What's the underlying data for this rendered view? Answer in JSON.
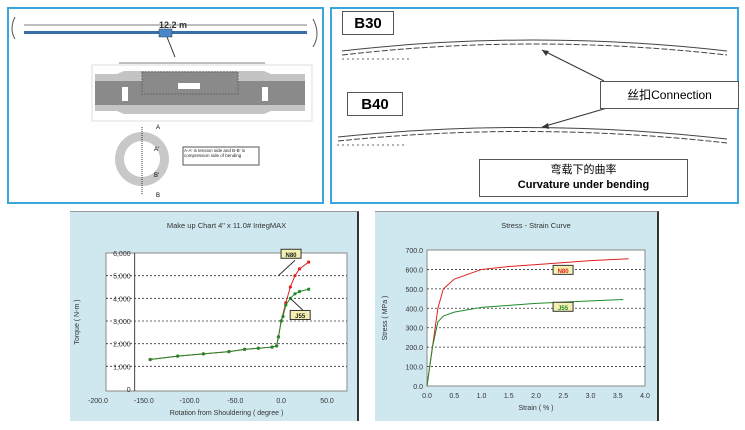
{
  "diagram_pipe": {
    "length_label": "12.2 m",
    "section_labels": [
      "A",
      "A'",
      "B'",
      "B"
    ],
    "note": "A-A' is tension side and B-B' is compression side of bending"
  },
  "diagram_curvature": {
    "b30_label": "B30",
    "b40_label": "B40",
    "connection_label": "丝扣Connection",
    "caption_cn": "弯载下的曲率",
    "caption_en": "Curvature under bending"
  },
  "chart_data": [
    {
      "type": "line",
      "title": "Make up Chart  4\" x 11.0# IntegMAX",
      "xlabel": "Rotation from Shouldering  ( degree )",
      "ylabel": "Torque ( N-m )",
      "xlim": [
        -200,
        50
      ],
      "ylim": [
        0,
        6000
      ],
      "xticks": [
        "-200.0",
        "-150.0",
        "-100.0",
        "-50.0",
        "0.0",
        "50.0"
      ],
      "yticks": [
        "0",
        "1,000",
        "2,000",
        "3,000",
        "4,000",
        "5,000",
        "6,000"
      ],
      "grid": "horizontal dashed",
      "colors": {
        "N80": "#e02020",
        "J55": "#1f8a2a"
      },
      "series": [
        {
          "name": "N80",
          "x": [
            -143,
            -113,
            -85,
            -57,
            -40,
            -25,
            -10,
            -5,
            -3,
            0,
            5,
            10,
            15,
            20,
            30
          ],
          "y": [
            1300,
            1450,
            1550,
            1650,
            1750,
            1800,
            1850,
            1900,
            2300,
            3000,
            3800,
            4500,
            5000,
            5300,
            5600
          ]
        },
        {
          "name": "J55",
          "x": [
            -143,
            -113,
            -85,
            -57,
            -40,
            -25,
            -10,
            -5,
            -3,
            0,
            2,
            5,
            10,
            15,
            20,
            30
          ],
          "y": [
            1300,
            1450,
            1550,
            1650,
            1750,
            1800,
            1850,
            1900,
            2300,
            3000,
            3200,
            3700,
            4000,
            4200,
            4300,
            4400
          ]
        }
      ]
    },
    {
      "type": "line",
      "title": "Stress - Strain Curve",
      "xlabel": "Strain ( % )",
      "ylabel": "Stress ( MPa )",
      "xlim": [
        0,
        4
      ],
      "ylim": [
        0,
        700
      ],
      "xticks": [
        "0.0",
        "0.5",
        "1.0",
        "1.5",
        "2.0",
        "2.5",
        "3.0",
        "3.5",
        "4.0"
      ],
      "yticks": [
        "0.0",
        "100.0",
        "200.0",
        "300.0",
        "400.0",
        "500.0",
        "600.0",
        "700.0"
      ],
      "grid": "horizontal dashed",
      "colors": {
        "N80": "#e02020",
        "J55": "#1f8a2a"
      },
      "series": [
        {
          "name": "N80",
          "x": [
            0,
            0.1,
            0.2,
            0.3,
            0.5,
            1,
            1.5,
            2,
            2.5,
            3,
            3.7
          ],
          "y": [
            0,
            200,
            400,
            500,
            550,
            600,
            615,
            625,
            635,
            645,
            655
          ]
        },
        {
          "name": "J55",
          "x": [
            0,
            0.1,
            0.2,
            0.3,
            0.5,
            1,
            1.5,
            2,
            2.5,
            3,
            3.6
          ],
          "y": [
            0,
            200,
            330,
            360,
            380,
            405,
            415,
            425,
            432,
            438,
            445
          ]
        }
      ]
    }
  ]
}
